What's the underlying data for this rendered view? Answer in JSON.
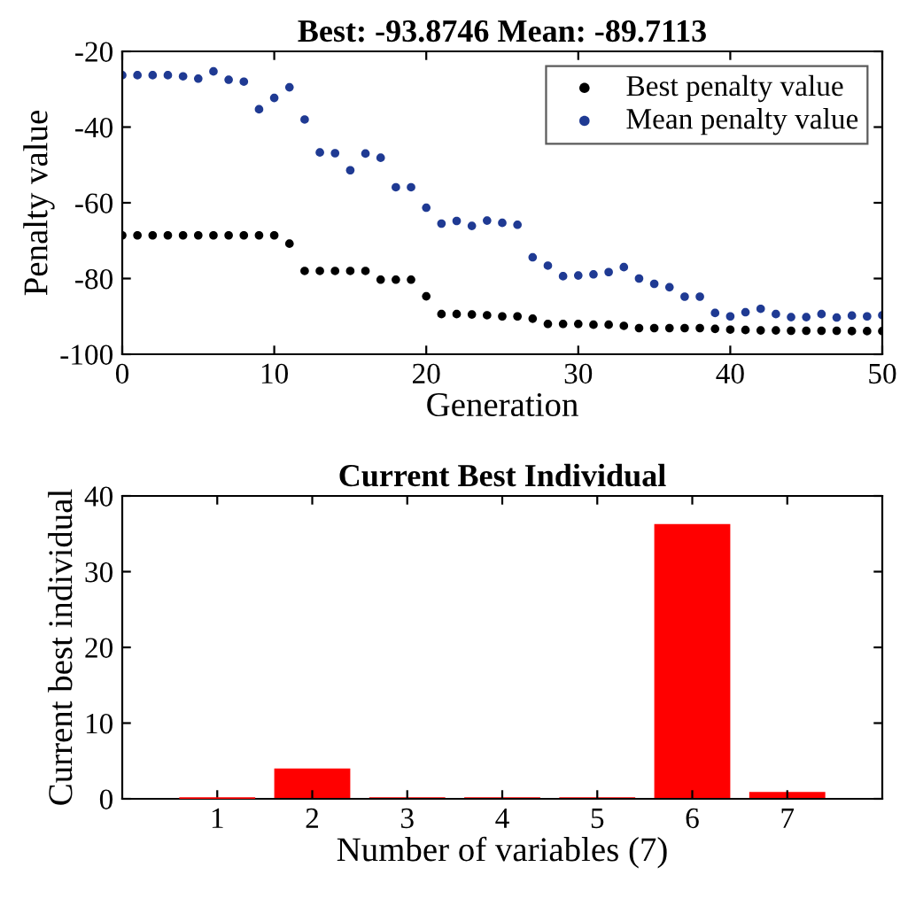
{
  "chart_data": [
    {
      "type": "scatter",
      "title": "Best: -93.8746 Mean: -89.7113",
      "xlabel": "Generation",
      "ylabel": "Penalty value",
      "x": [
        0,
        1,
        2,
        3,
        4,
        5,
        6,
        7,
        8,
        9,
        10,
        11,
        12,
        13,
        14,
        15,
        16,
        17,
        18,
        19,
        20,
        21,
        22,
        23,
        24,
        25,
        26,
        27,
        28,
        29,
        30,
        31,
        32,
        33,
        34,
        35,
        36,
        37,
        38,
        39,
        40,
        41,
        42,
        43,
        44,
        45,
        46,
        47,
        48,
        49,
        50
      ],
      "series": [
        {
          "name": "Best penalty value",
          "color": "#000000",
          "values": [
            -68.6,
            -68.6,
            -68.6,
            -68.6,
            -68.6,
            -68.6,
            -68.6,
            -68.6,
            -68.6,
            -68.6,
            -68.6,
            -70.8,
            -78.0,
            -78.0,
            -78.0,
            -78.0,
            -78.0,
            -80.3,
            -80.3,
            -80.3,
            -84.7,
            -89.4,
            -89.4,
            -89.5,
            -89.7,
            -90.0,
            -90.0,
            -90.6,
            -92.0,
            -92.0,
            -92.0,
            -92.2,
            -92.2,
            -92.5,
            -93.1,
            -93.1,
            -93.1,
            -93.1,
            -93.1,
            -93.3,
            -93.5,
            -93.6,
            -93.7,
            -93.7,
            -93.8,
            -93.8,
            -93.8,
            -93.8,
            -93.9,
            -93.9,
            -93.9
          ]
        },
        {
          "name": "Mean penalty value",
          "color": "#1f3a93",
          "values": [
            -26.3,
            -26.3,
            -26.3,
            -26.3,
            -26.6,
            -27.2,
            -25.3,
            -27.5,
            -28.0,
            -35.3,
            -32.3,
            -29.5,
            -38.0,
            -46.7,
            -46.9,
            -51.4,
            -47.0,
            -48.1,
            -55.9,
            -55.9,
            -61.3,
            -65.5,
            -64.8,
            -66.1,
            -64.7,
            -65.3,
            -65.8,
            -74.4,
            -76.6,
            -79.4,
            -79.2,
            -78.9,
            -78.3,
            -77.0,
            -80.0,
            -81.4,
            -82.3,
            -84.8,
            -84.8,
            -89.1,
            -90.0,
            -88.9,
            -88.0,
            -89.4,
            -90.2,
            -90.2,
            -89.4,
            -90.3,
            -89.8,
            -90.0,
            -89.7
          ]
        }
      ],
      "xlim": [
        0,
        50
      ],
      "xticks": [
        0,
        10,
        20,
        30,
        40,
        50
      ],
      "ylim": [
        -100,
        -20
      ],
      "yticks": [
        -100,
        -80,
        -60,
        -40,
        -20
      ],
      "marker": "circle",
      "legend": "top right",
      "grid": false
    },
    {
      "type": "bar",
      "title": "Current Best Individual",
      "xlabel": "Number of variables (7)",
      "ylabel": "Current best individual",
      "categories": [
        "1",
        "2",
        "3",
        "4",
        "5",
        "6",
        "7"
      ],
      "values": [
        0.2,
        4.0,
        0.2,
        0.2,
        0.2,
        36.3,
        0.9
      ],
      "color": "#ff0000",
      "ylim": [
        0,
        40
      ],
      "yticks": [
        0,
        10,
        20,
        30,
        40
      ],
      "grid": false
    }
  ]
}
